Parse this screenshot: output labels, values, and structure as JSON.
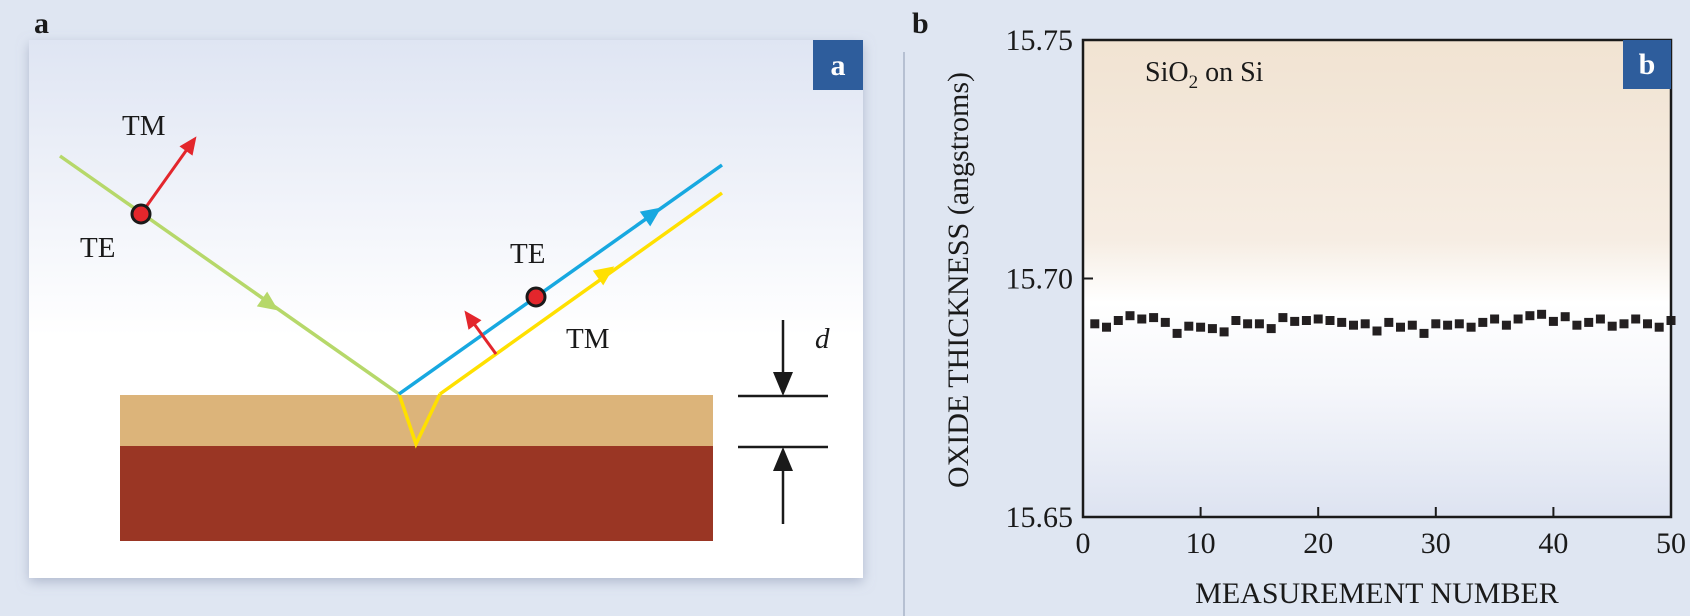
{
  "panel_a": {
    "outer_label": "a",
    "badge": "a",
    "labels": {
      "tm_incident": "TM",
      "te_incident": "TE",
      "te_reflected": "TE",
      "tm_reflected": "TM",
      "thickness": "d"
    },
    "colors": {
      "incident_beam": "#b6d86a",
      "reflected_blue": "#17a8e0",
      "reflected_yellow": "#ffe000",
      "film_layer": "#dcb47a",
      "substrate": "#9a3624",
      "polarization_arrow": "#e3262c",
      "badge_bg": "#2e5d9c"
    }
  },
  "panel_b": {
    "outer_label": "b",
    "badge": "b",
    "annotation_main": "SiO",
    "annotation_sub": "2",
    "annotation_tail": " on Si"
  },
  "chart_data": {
    "type": "scatter",
    "xlabel": "MEASUREMENT NUMBER",
    "ylabel": "OXIDE THICKNESS (angstroms)",
    "xlim": [
      0,
      50
    ],
    "ylim": [
      15.65,
      15.75
    ],
    "xticks": [
      0,
      10,
      20,
      30,
      40,
      50
    ],
    "yticks": [
      15.65,
      15.7,
      15.75
    ],
    "ytick_labels": [
      "15.65",
      "15.70",
      "15.75"
    ],
    "grid": false,
    "marker": "square",
    "marker_color": "#231f20",
    "x": [
      1,
      2,
      3,
      4,
      5,
      6,
      7,
      8,
      9,
      10,
      11,
      12,
      13,
      14,
      15,
      16,
      17,
      18,
      19,
      20,
      21,
      22,
      23,
      24,
      25,
      26,
      27,
      28,
      29,
      30,
      31,
      32,
      33,
      34,
      35,
      36,
      37,
      38,
      39,
      40,
      41,
      42,
      43,
      44,
      45,
      46,
      47,
      48,
      49,
      50
    ],
    "y": [
      15.6905,
      15.6898,
      15.6912,
      15.6922,
      15.6915,
      15.6918,
      15.6908,
      15.6885,
      15.69,
      15.6898,
      15.6895,
      15.6888,
      15.6912,
      15.6905,
      15.6905,
      15.6895,
      15.6918,
      15.691,
      15.6912,
      15.6915,
      15.6912,
      15.6908,
      15.6902,
      15.6905,
      15.689,
      15.6908,
      15.6898,
      15.6902,
      15.6885,
      15.6905,
      15.6902,
      15.6905,
      15.6898,
      15.6908,
      15.6915,
      15.6902,
      15.6915,
      15.6922,
      15.6925,
      15.691,
      15.692,
      15.6902,
      15.6908,
      15.6915,
      15.69,
      15.6905,
      15.6915,
      15.6905,
      15.6898,
      15.6912
    ]
  }
}
